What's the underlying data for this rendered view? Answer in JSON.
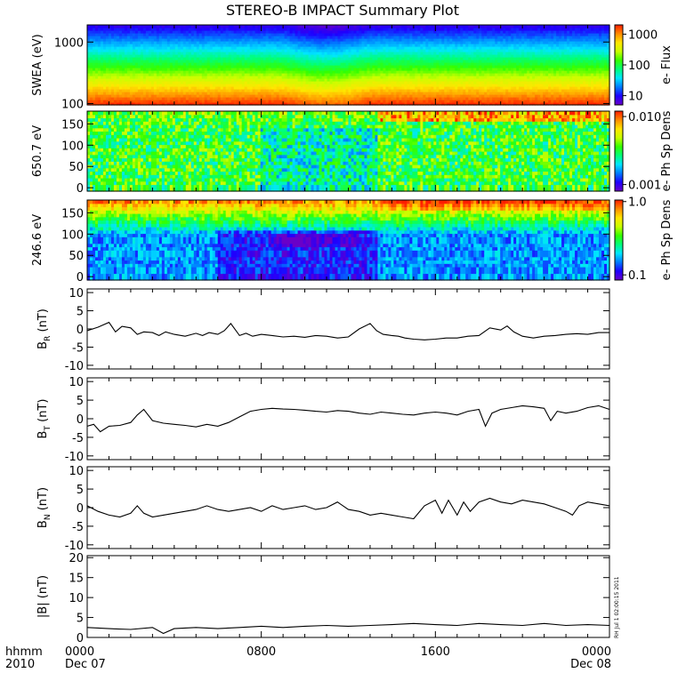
{
  "title": "STEREO-B IMPACT Summary Plot",
  "stamp": "RH Jul 1 02:00:15 2011",
  "time_axis": {
    "label_top": "hhmm",
    "label_bottom": "2010",
    "ticks": [
      {
        "hour": 0,
        "label": "0000",
        "date": "Dec 07"
      },
      {
        "hour": 8,
        "label": "0800",
        "date": ""
      },
      {
        "hour": 16,
        "label": "1600",
        "date": ""
      },
      {
        "hour": 24,
        "label": "0000",
        "date": "Dec 08"
      }
    ],
    "range_hours": [
      0,
      24
    ]
  },
  "colors": {
    "line": "#000000",
    "rainbow": [
      "#6a00c8",
      "#1e00ff",
      "#007bff",
      "#00e6ff",
      "#00ff7a",
      "#34ff00",
      "#c8ff00",
      "#ffe600",
      "#ff8c00",
      "#ff1e00"
    ]
  },
  "chart_data": [
    {
      "type": "heatmap",
      "ylabel": "SWEA (eV)",
      "yscale": "log",
      "ylim": [
        95,
        1900
      ],
      "yticks": [
        {
          "v": 100,
          "label": "100"
        },
        {
          "v": 1000,
          "label": "1000"
        }
      ],
      "colorbar": {
        "label": "e- Flux",
        "scale": "log",
        "range": [
          5,
          2000
        ],
        "ticks": [
          {
            "v": 10,
            "label": "10"
          },
          {
            "v": 100,
            "label": "100"
          },
          {
            "v": 1000,
            "label": "1000"
          }
        ]
      },
      "profile": "energy"
    },
    {
      "type": "heatmap",
      "ylabel": "650.7 eV",
      "ylim": [
        -8,
        180
      ],
      "yticks": [
        {
          "v": 0,
          "label": "0"
        },
        {
          "v": 50,
          "label": "50"
        },
        {
          "v": 100,
          "label": "100"
        },
        {
          "v": 150,
          "label": "150"
        }
      ],
      "colorbar": {
        "label": "e- Ph Sp Dens",
        "scale": "log",
        "range": [
          0.0008,
          0.012
        ],
        "ticks": [
          {
            "v": 0.001,
            "label": "0.001"
          },
          {
            "v": 0.01,
            "label": "0.010"
          }
        ]
      },
      "profile": "pitch650"
    },
    {
      "type": "heatmap",
      "ylabel": "246.6 eV",
      "ylim": [
        -8,
        180
      ],
      "yticks": [
        {
          "v": 0,
          "label": "0"
        },
        {
          "v": 50,
          "label": "50"
        },
        {
          "v": 100,
          "label": "100"
        },
        {
          "v": 150,
          "label": "150"
        }
      ],
      "colorbar": {
        "label": "e- Ph Sp Dens",
        "scale": "log",
        "range": [
          0.085,
          1.05
        ],
        "ticks": [
          {
            "v": 0.1,
            "label": "0.1"
          },
          {
            "v": 1,
            "label": "1.0"
          }
        ]
      },
      "profile": "pitch246"
    },
    {
      "type": "line",
      "ylabel": "B",
      "ylabel_sub": "R",
      "ylabel_unit": " (nT)",
      "ylim": [
        -11,
        11
      ],
      "yticks": [
        {
          "v": -10,
          "label": "-10"
        },
        {
          "v": -5,
          "label": "-5"
        },
        {
          "v": 0,
          "label": "0"
        },
        {
          "v": 5,
          "label": "5"
        },
        {
          "v": 10,
          "label": "10"
        }
      ],
      "x": [
        0,
        0.5,
        1,
        1.3,
        1.6,
        2,
        2.3,
        2.6,
        3,
        3.3,
        3.6,
        4,
        4.5,
        5,
        5.3,
        5.6,
        6,
        6.3,
        6.6,
        7,
        7.3,
        7.6,
        8,
        8.5,
        9,
        9.5,
        10,
        10.5,
        11,
        11.5,
        12,
        12.5,
        13,
        13.3,
        13.6,
        14,
        14.3,
        14.6,
        15,
        15.5,
        16,
        16.5,
        17,
        17.5,
        18,
        18.5,
        19,
        19.3,
        19.6,
        20,
        20.5,
        21,
        21.5,
        22,
        22.5,
        23,
        23.5,
        24
      ],
      "y": [
        -0.5,
        0.5,
        1.8,
        -0.8,
        0.7,
        0.3,
        -1.5,
        -0.8,
        -1.0,
        -1.8,
        -0.8,
        -1.5,
        -2.0,
        -1.2,
        -1.8,
        -1.0,
        -1.5,
        -0.5,
        1.5,
        -1.8,
        -1.2,
        -2.0,
        -1.5,
        -1.8,
        -2.2,
        -2.0,
        -2.3,
        -1.8,
        -2.0,
        -2.5,
        -2.2,
        0.0,
        1.5,
        -0.5,
        -1.5,
        -1.8,
        -2.0,
        -2.5,
        -2.8,
        -3.0,
        -2.8,
        -2.5,
        -2.5,
        -2.0,
        -1.8,
        0.3,
        -0.3,
        0.8,
        -0.8,
        -2.0,
        -2.5,
        -2.0,
        -1.8,
        -1.5,
        -1.3,
        -1.5,
        -1.0,
        -1.0
      ]
    },
    {
      "type": "line",
      "ylabel": "B",
      "ylabel_sub": "T",
      "ylabel_unit": " (nT)",
      "ylim": [
        -11,
        11
      ],
      "yticks": [
        {
          "v": -10,
          "label": "-10"
        },
        {
          "v": -5,
          "label": "-5"
        },
        {
          "v": 0,
          "label": "0"
        },
        {
          "v": 5,
          "label": "5"
        },
        {
          "v": 10,
          "label": "10"
        }
      ],
      "x": [
        0,
        0.3,
        0.6,
        1,
        1.5,
        2,
        2.3,
        2.6,
        3,
        3.5,
        4,
        4.5,
        5,
        5.5,
        6,
        6.5,
        7,
        7.5,
        8,
        8.5,
        9,
        9.5,
        10,
        10.5,
        11,
        11.5,
        12,
        12.5,
        13,
        13.5,
        14,
        14.5,
        15,
        15.5,
        16,
        16.5,
        17,
        17.5,
        18,
        18.3,
        18.6,
        19,
        19.5,
        20,
        20.5,
        21,
        21.3,
        21.6,
        22,
        22.5,
        23,
        23.5,
        24
      ],
      "y": [
        -2.0,
        -1.5,
        -3.5,
        -2.0,
        -1.8,
        -1.0,
        1.0,
        2.5,
        -0.5,
        -1.2,
        -1.5,
        -1.8,
        -2.2,
        -1.5,
        -2.0,
        -1.0,
        0.5,
        2.0,
        2.5,
        2.8,
        2.6,
        2.5,
        2.3,
        2.0,
        1.8,
        2.2,
        2.0,
        1.5,
        1.2,
        1.8,
        1.5,
        1.2,
        1.0,
        1.5,
        1.8,
        1.5,
        1.0,
        2.0,
        2.5,
        -2.0,
        1.5,
        2.5,
        3.0,
        3.5,
        3.2,
        2.8,
        -0.5,
        2.0,
        1.5,
        2.0,
        3.0,
        3.5,
        2.5
      ]
    },
    {
      "type": "line",
      "ylabel": "B",
      "ylabel_sub": "N",
      "ylabel_unit": " (nT)",
      "ylim": [
        -11,
        11
      ],
      "yticks": [
        {
          "v": -10,
          "label": "-10"
        },
        {
          "v": -5,
          "label": "-5"
        },
        {
          "v": 0,
          "label": "0"
        },
        {
          "v": 5,
          "label": "5"
        },
        {
          "v": 10,
          "label": "10"
        }
      ],
      "x": [
        0,
        0.5,
        1,
        1.5,
        2,
        2.3,
        2.6,
        3,
        3.5,
        4,
        4.5,
        5,
        5.5,
        6,
        6.5,
        7,
        7.5,
        8,
        8.5,
        9,
        9.5,
        10,
        10.5,
        11,
        11.5,
        12,
        12.5,
        13,
        13.5,
        14,
        14.5,
        15,
        15.5,
        16,
        16.3,
        16.6,
        17,
        17.3,
        17.6,
        18,
        18.5,
        19,
        19.5,
        20,
        20.5,
        21,
        21.5,
        22,
        22.3,
        22.6,
        23,
        23.5,
        24
      ],
      "y": [
        0.5,
        -1.0,
        -2.0,
        -2.5,
        -1.5,
        0.5,
        -1.5,
        -2.5,
        -2.0,
        -1.5,
        -1.0,
        -0.5,
        0.5,
        -0.5,
        -1.0,
        -0.5,
        0.0,
        -1.0,
        0.5,
        -0.5,
        0.0,
        0.5,
        -0.5,
        0.0,
        1.5,
        -0.5,
        -1.0,
        -2.0,
        -1.5,
        -2.0,
        -2.5,
        -3.0,
        0.5,
        2.0,
        -1.5,
        2.0,
        -2.0,
        1.5,
        -1.0,
        1.5,
        2.5,
        1.5,
        1.0,
        2.0,
        1.5,
        1.0,
        0.0,
        -1.0,
        -2.0,
        0.5,
        1.5,
        1.0,
        0.5
      ]
    },
    {
      "type": "line",
      "ylabel": "|B|",
      "ylabel_sub": "",
      "ylabel_unit": " (nT)",
      "ylim": [
        0,
        20.5
      ],
      "yticks": [
        {
          "v": 0,
          "label": "0"
        },
        {
          "v": 5,
          "label": "5"
        },
        {
          "v": 10,
          "label": "10"
        },
        {
          "v": 15,
          "label": "15"
        },
        {
          "v": 20,
          "label": "20"
        }
      ],
      "x": [
        0,
        1,
        2,
        3,
        3.5,
        4,
        5,
        6,
        7,
        8,
        9,
        10,
        11,
        12,
        13,
        14,
        15,
        16,
        17,
        18,
        19,
        20,
        21,
        22,
        23,
        24
      ],
      "y": [
        2.5,
        2.2,
        2.0,
        2.5,
        1.0,
        2.2,
        2.5,
        2.2,
        2.5,
        2.8,
        2.5,
        2.8,
        3.0,
        2.8,
        3.0,
        3.2,
        3.5,
        3.2,
        3.0,
        3.5,
        3.2,
        3.0,
        3.5,
        3.0,
        3.2,
        3.0
      ]
    }
  ]
}
